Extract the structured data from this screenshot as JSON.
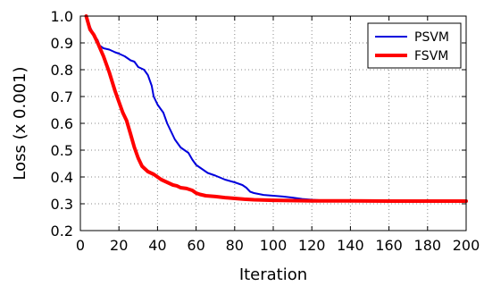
{
  "chart_data": {
    "type": "line",
    "xlabel": "Iteration",
    "ylabel": "Loss (x 0.001)",
    "xlim": [
      0,
      200
    ],
    "ylim": [
      0.2,
      1.0
    ],
    "xticks": [
      "0",
      "20",
      "40",
      "60",
      "80",
      "100",
      "120",
      "140",
      "160",
      "180",
      "200"
    ],
    "yticks": [
      "0.2",
      "0.3",
      "0.4",
      "0.5",
      "0.6",
      "0.7",
      "0.8",
      "0.9",
      "1.0"
    ],
    "grid": true,
    "legend_position": "top-right",
    "series": [
      {
        "name": "PSVM",
        "color": "#0000dd",
        "x": [
          3,
          5,
          7,
          9,
          10,
          12,
          15,
          18,
          20,
          23,
          26,
          28,
          30,
          33,
          35,
          37,
          38,
          40,
          42,
          43,
          45,
          47,
          49,
          52,
          54,
          56,
          58,
          60,
          63,
          66,
          70,
          75,
          80,
          84,
          86,
          88,
          90,
          95,
          100,
          105,
          110,
          115,
          120,
          125,
          130,
          140,
          160,
          180,
          200
        ],
        "y": [
          1.0,
          0.96,
          0.93,
          0.91,
          0.89,
          0.88,
          0.875,
          0.865,
          0.86,
          0.85,
          0.835,
          0.83,
          0.81,
          0.8,
          0.78,
          0.74,
          0.7,
          0.67,
          0.65,
          0.64,
          0.6,
          0.57,
          0.54,
          0.51,
          0.5,
          0.49,
          0.465,
          0.445,
          0.43,
          0.415,
          0.405,
          0.39,
          0.38,
          0.37,
          0.36,
          0.345,
          0.34,
          0.333,
          0.33,
          0.327,
          0.323,
          0.318,
          0.315,
          0.313,
          0.312,
          0.311,
          0.311,
          0.31,
          0.31
        ],
        "line_width": 2
      },
      {
        "name": "FSVM",
        "color": "#ff0000",
        "x": [
          3,
          5,
          7,
          9,
          12,
          15,
          18,
          20,
          22,
          24,
          26,
          28,
          30,
          32,
          35,
          38,
          40,
          42,
          45,
          48,
          50,
          52,
          55,
          58,
          60,
          62,
          65,
          70,
          75,
          80,
          85,
          90,
          100,
          120,
          140,
          160,
          180,
          200
        ],
        "y": [
          1.0,
          0.95,
          0.93,
          0.9,
          0.85,
          0.79,
          0.72,
          0.68,
          0.64,
          0.61,
          0.56,
          0.51,
          0.47,
          0.44,
          0.42,
          0.41,
          0.4,
          0.39,
          0.38,
          0.37,
          0.367,
          0.36,
          0.357,
          0.35,
          0.34,
          0.335,
          0.33,
          0.327,
          0.323,
          0.32,
          0.317,
          0.315,
          0.313,
          0.311,
          0.311,
          0.31,
          0.31,
          0.31
        ],
        "line_width": 4
      }
    ]
  }
}
